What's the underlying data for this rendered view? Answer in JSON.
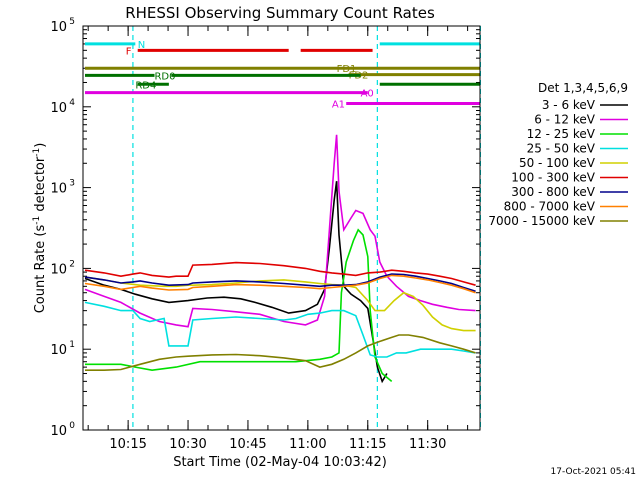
{
  "chart_data": {
    "type": "line",
    "title": "RHESSI Observing Summary Count Rates",
    "xlabel": "Start Time (02-May-04 10:03:42)",
    "ylabel_main": "Count Rate (s",
    "ylabel_sup": "-1",
    "ylabel_mid": " detector",
    "ylabel_end": ")",
    "y_scale": "log",
    "ylim": [
      1,
      100000
    ],
    "xlim": [
      10.0617,
      11.7183
    ],
    "y_ticks": [
      {
        "v": 1,
        "base": "10",
        "exp": "0"
      },
      {
        "v": 10,
        "base": "10",
        "exp": "1"
      },
      {
        "v": 100,
        "base": "10",
        "exp": "2"
      },
      {
        "v": 1000,
        "base": "10",
        "exp": "3"
      },
      {
        "v": 10000,
        "base": "10",
        "exp": "4"
      },
      {
        "v": 100000,
        "base": "10",
        "exp": "5"
      }
    ],
    "x_ticks": [
      {
        "v": 10.25,
        "label": "10:15"
      },
      {
        "v": 10.5,
        "label": "10:30"
      },
      {
        "v": 10.75,
        "label": "10:45"
      },
      {
        "v": 11.0,
        "label": "11:00"
      },
      {
        "v": 11.25,
        "label": "11:15"
      },
      {
        "v": 11.5,
        "label": "11:30"
      }
    ],
    "legend_title": "Det 1,3,4,5,6,9",
    "legend_placement": "right",
    "timestamp": "17-Oct-2021 05:41",
    "series": [
      {
        "name": "3 - 6 keV",
        "color": "#000000",
        "points": [
          [
            10.07,
            75
          ],
          [
            10.15,
            62
          ],
          [
            10.22,
            55
          ],
          [
            10.28,
            48
          ],
          [
            10.35,
            42
          ],
          [
            10.42,
            38
          ],
          [
            10.5,
            40
          ],
          [
            10.58,
            43
          ],
          [
            10.65,
            44
          ],
          [
            10.72,
            42
          ],
          [
            10.78,
            38
          ],
          [
            10.85,
            33
          ],
          [
            10.92,
            28
          ],
          [
            10.99,
            30
          ],
          [
            11.04,
            36
          ],
          [
            11.07,
            55
          ],
          [
            11.09,
            180
          ],
          [
            11.11,
            700
          ],
          [
            11.12,
            1200
          ],
          [
            11.13,
            260
          ],
          [
            11.15,
            60
          ],
          [
            11.18,
            48
          ],
          [
            11.22,
            40
          ],
          [
            11.25,
            32
          ],
          [
            11.27,
            14
          ],
          [
            11.29,
            6
          ],
          [
            11.31,
            4
          ],
          [
            11.33,
            5
          ]
        ]
      },
      {
        "name": "6 - 12 keV",
        "color": "#e000e0",
        "points": [
          [
            10.07,
            55
          ],
          [
            10.15,
            45
          ],
          [
            10.22,
            38
          ],
          [
            10.3,
            28
          ],
          [
            10.38,
            22
          ],
          [
            10.45,
            20
          ],
          [
            10.5,
            19
          ],
          [
            10.52,
            32
          ],
          [
            10.6,
            31
          ],
          [
            10.7,
            29
          ],
          [
            10.8,
            27
          ],
          [
            10.9,
            22
          ],
          [
            10.99,
            20
          ],
          [
            11.04,
            23
          ],
          [
            11.07,
            45
          ],
          [
            11.09,
            300
          ],
          [
            11.11,
            2000
          ],
          [
            11.12,
            4500
          ],
          [
            11.13,
            900
          ],
          [
            11.15,
            300
          ],
          [
            11.18,
            420
          ],
          [
            11.2,
            520
          ],
          [
            11.23,
            480
          ],
          [
            11.26,
            300
          ],
          [
            11.28,
            250
          ],
          [
            11.3,
            120
          ],
          [
            11.33,
            80
          ],
          [
            11.37,
            60
          ],
          [
            11.42,
            45
          ],
          [
            11.47,
            40
          ],
          [
            11.52,
            36
          ],
          [
            11.58,
            33
          ],
          [
            11.63,
            31
          ],
          [
            11.7,
            30
          ]
        ]
      },
      {
        "name": "12 - 25 keV",
        "color": "#00e000",
        "points": [
          [
            10.07,
            6.5
          ],
          [
            10.15,
            6.5
          ],
          [
            10.22,
            6.5
          ],
          [
            10.28,
            6
          ],
          [
            10.35,
            5.5
          ],
          [
            10.45,
            6
          ],
          [
            10.55,
            7
          ],
          [
            10.65,
            7
          ],
          [
            10.75,
            7
          ],
          [
            10.85,
            7
          ],
          [
            10.95,
            7
          ],
          [
            11.05,
            7.5
          ],
          [
            11.1,
            8
          ],
          [
            11.13,
            9
          ],
          [
            11.14,
            50
          ],
          [
            11.16,
            120
          ],
          [
            11.19,
            220
          ],
          [
            11.21,
            300
          ],
          [
            11.23,
            260
          ],
          [
            11.25,
            140
          ],
          [
            11.26,
            30
          ],
          [
            11.28,
            8
          ],
          [
            11.31,
            5
          ],
          [
            11.35,
            4
          ]
        ]
      },
      {
        "name": "25 - 50 keV",
        "color": "#00e0e0",
        "points": [
          [
            10.07,
            38
          ],
          [
            10.15,
            34
          ],
          [
            10.22,
            30
          ],
          [
            10.27,
            30
          ],
          [
            10.3,
            24
          ],
          [
            10.34,
            22
          ],
          [
            10.37,
            23
          ],
          [
            10.4,
            24
          ],
          [
            10.42,
            11
          ],
          [
            10.5,
            11
          ],
          [
            10.52,
            23
          ],
          [
            10.6,
            24
          ],
          [
            10.7,
            25
          ],
          [
            10.8,
            24
          ],
          [
            10.9,
            23
          ],
          [
            10.95,
            24
          ],
          [
            11.0,
            27
          ],
          [
            11.05,
            28
          ],
          [
            11.1,
            30
          ],
          [
            11.15,
            30
          ],
          [
            11.2,
            26
          ],
          [
            11.23,
            15
          ],
          [
            11.26,
            8.5
          ],
          [
            11.29,
            8
          ],
          [
            11.33,
            8
          ],
          [
            11.37,
            9
          ],
          [
            11.41,
            9
          ],
          [
            11.47,
            10
          ],
          [
            11.5,
            10
          ],
          [
            11.55,
            10
          ],
          [
            11.6,
            10
          ],
          [
            11.65,
            9.5
          ],
          [
            11.7,
            9
          ]
        ]
      },
      {
        "name": "50 - 100 keV",
        "color": "#d0d000",
        "points": [
          [
            10.07,
            78
          ],
          [
            10.15,
            72
          ],
          [
            10.22,
            66
          ],
          [
            10.3,
            62
          ],
          [
            10.4,
            60
          ],
          [
            10.45,
            60
          ],
          [
            10.5,
            62
          ],
          [
            10.52,
            62
          ],
          [
            10.6,
            63
          ],
          [
            10.7,
            66
          ],
          [
            10.8,
            70
          ],
          [
            10.9,
            72
          ],
          [
            10.99,
            68
          ],
          [
            11.05,
            65
          ],
          [
            11.1,
            63
          ],
          [
            11.15,
            62
          ],
          [
            11.2,
            58
          ],
          [
            11.25,
            40
          ],
          [
            11.28,
            30
          ],
          [
            11.32,
            30
          ],
          [
            11.36,
            40
          ],
          [
            11.4,
            50
          ],
          [
            11.44,
            45
          ],
          [
            11.48,
            35
          ],
          [
            11.52,
            25
          ],
          [
            11.56,
            20
          ],
          [
            11.6,
            18
          ],
          [
            11.65,
            17
          ],
          [
            11.7,
            17
          ]
        ]
      },
      {
        "name": "100 - 300 keV",
        "color": "#e00000",
        "points": [
          [
            10.07,
            95
          ],
          [
            10.15,
            88
          ],
          [
            10.22,
            80
          ],
          [
            10.27,
            85
          ],
          [
            10.3,
            88
          ],
          [
            10.35,
            82
          ],
          [
            10.42,
            78
          ],
          [
            10.45,
            80
          ],
          [
            10.5,
            80
          ],
          [
            10.52,
            110
          ],
          [
            10.6,
            112
          ],
          [
            10.7,
            118
          ],
          [
            10.8,
            115
          ],
          [
            10.9,
            108
          ],
          [
            10.99,
            100
          ],
          [
            11.05,
            92
          ],
          [
            11.1,
            88
          ],
          [
            11.15,
            85
          ],
          [
            11.2,
            82
          ],
          [
            11.25,
            88
          ],
          [
            11.3,
            90
          ],
          [
            11.35,
            95
          ],
          [
            11.4,
            92
          ],
          [
            11.45,
            88
          ],
          [
            11.5,
            85
          ],
          [
            11.55,
            80
          ],
          [
            11.6,
            75
          ],
          [
            11.65,
            68
          ],
          [
            11.7,
            62
          ]
        ]
      },
      {
        "name": "300 - 800 keV",
        "color": "#00008b",
        "points": [
          [
            10.07,
            78
          ],
          [
            10.15,
            72
          ],
          [
            10.22,
            66
          ],
          [
            10.27,
            68
          ],
          [
            10.3,
            70
          ],
          [
            10.35,
            66
          ],
          [
            10.42,
            62
          ],
          [
            10.5,
            63
          ],
          [
            10.52,
            66
          ],
          [
            10.6,
            68
          ],
          [
            10.7,
            70
          ],
          [
            10.8,
            68
          ],
          [
            10.9,
            65
          ],
          [
            10.99,
            62
          ],
          [
            11.05,
            60
          ],
          [
            11.1,
            62
          ],
          [
            11.15,
            62
          ],
          [
            11.2,
            63
          ],
          [
            11.25,
            68
          ],
          [
            11.3,
            78
          ],
          [
            11.35,
            85
          ],
          [
            11.4,
            84
          ],
          [
            11.45,
            80
          ],
          [
            11.5,
            75
          ],
          [
            11.55,
            70
          ],
          [
            11.6,
            65
          ],
          [
            11.65,
            58
          ],
          [
            11.7,
            52
          ]
        ]
      },
      {
        "name": "800 - 7000 keV",
        "color": "#ff8000",
        "points": [
          [
            10.07,
            65
          ],
          [
            10.15,
            60
          ],
          [
            10.22,
            55
          ],
          [
            10.27,
            58
          ],
          [
            10.3,
            60
          ],
          [
            10.35,
            57
          ],
          [
            10.42,
            54
          ],
          [
            10.5,
            55
          ],
          [
            10.52,
            58
          ],
          [
            10.6,
            60
          ],
          [
            10.7,
            63
          ],
          [
            10.8,
            62
          ],
          [
            10.9,
            60
          ],
          [
            10.99,
            58
          ],
          [
            11.05,
            56
          ],
          [
            11.1,
            58
          ],
          [
            11.15,
            60
          ],
          [
            11.2,
            62
          ],
          [
            11.25,
            66
          ],
          [
            11.3,
            75
          ],
          [
            11.35,
            82
          ],
          [
            11.4,
            80
          ],
          [
            11.45,
            76
          ],
          [
            11.5,
            72
          ],
          [
            11.55,
            67
          ],
          [
            11.6,
            62
          ],
          [
            11.65,
            56
          ],
          [
            11.7,
            50
          ]
        ]
      },
      {
        "name": "7000 - 15000 keV",
        "color": "#808000",
        "points": [
          [
            10.07,
            5.5
          ],
          [
            10.15,
            5.5
          ],
          [
            10.22,
            5.6
          ],
          [
            10.3,
            6.5
          ],
          [
            10.38,
            7.5
          ],
          [
            10.45,
            8
          ],
          [
            10.5,
            8.2
          ],
          [
            10.6,
            8.5
          ],
          [
            10.7,
            8.6
          ],
          [
            10.8,
            8.3
          ],
          [
            10.9,
            7.8
          ],
          [
            10.99,
            7.2
          ],
          [
            11.05,
            6
          ],
          [
            11.1,
            6.5
          ],
          [
            11.15,
            7.5
          ],
          [
            11.2,
            9
          ],
          [
            11.25,
            11
          ],
          [
            11.3,
            12.5
          ],
          [
            11.35,
            14
          ],
          [
            11.38,
            15
          ],
          [
            11.42,
            15
          ],
          [
            11.48,
            14
          ],
          [
            11.55,
            12
          ],
          [
            11.6,
            11
          ],
          [
            11.65,
            10
          ],
          [
            11.7,
            9
          ]
        ]
      }
    ],
    "flags": [
      {
        "name": "N",
        "color": "#00e0e0",
        "y": 60000,
        "segments": [
          [
            10.07,
            10.28
          ],
          [
            11.3,
            11.72
          ]
        ],
        "label_x": 10.29
      },
      {
        "name": "F",
        "color": "#e00000",
        "y": 50000,
        "segments": [
          [
            10.29,
            10.92
          ],
          [
            10.97,
            11.27
          ]
        ],
        "label_x": 10.24
      },
      {
        "name": "FD1",
        "color": "#808000",
        "y": 30000,
        "segments": [
          [
            10.07,
            11.72
          ]
        ],
        "label_x": 11.12
      },
      {
        "name": "FD2",
        "color": "#808000",
        "y": 25000,
        "segments": [
          [
            11.17,
            11.72
          ]
        ],
        "label_x": 11.17
      },
      {
        "name": "RD0",
        "color": "#007000",
        "y": 24500,
        "segments": [
          [
            10.07,
            10.36
          ],
          [
            10.43,
            11.22
          ]
        ],
        "label_x": 10.36
      },
      {
        "name": "RD4",
        "color": "#007000",
        "y": 19000,
        "segments": [
          [
            10.29,
            10.42
          ],
          [
            11.3,
            11.72
          ]
        ],
        "label_x": 10.28
      },
      {
        "name": "A0",
        "color": "#e000e0",
        "y": 15000,
        "segments": [
          [
            10.07,
            11.25
          ]
        ],
        "label_x": 11.22
      },
      {
        "name": "A1",
        "color": "#e000e0",
        "y": 11000,
        "segments": [
          [
            11.16,
            11.72
          ]
        ],
        "label_x": 11.1
      }
    ],
    "vlines": [
      {
        "x": 10.27,
        "color": "#00e0e0"
      },
      {
        "x": 11.29,
        "color": "#00e0e0"
      },
      {
        "x": 11.72,
        "color": "#00e0e0"
      }
    ]
  }
}
